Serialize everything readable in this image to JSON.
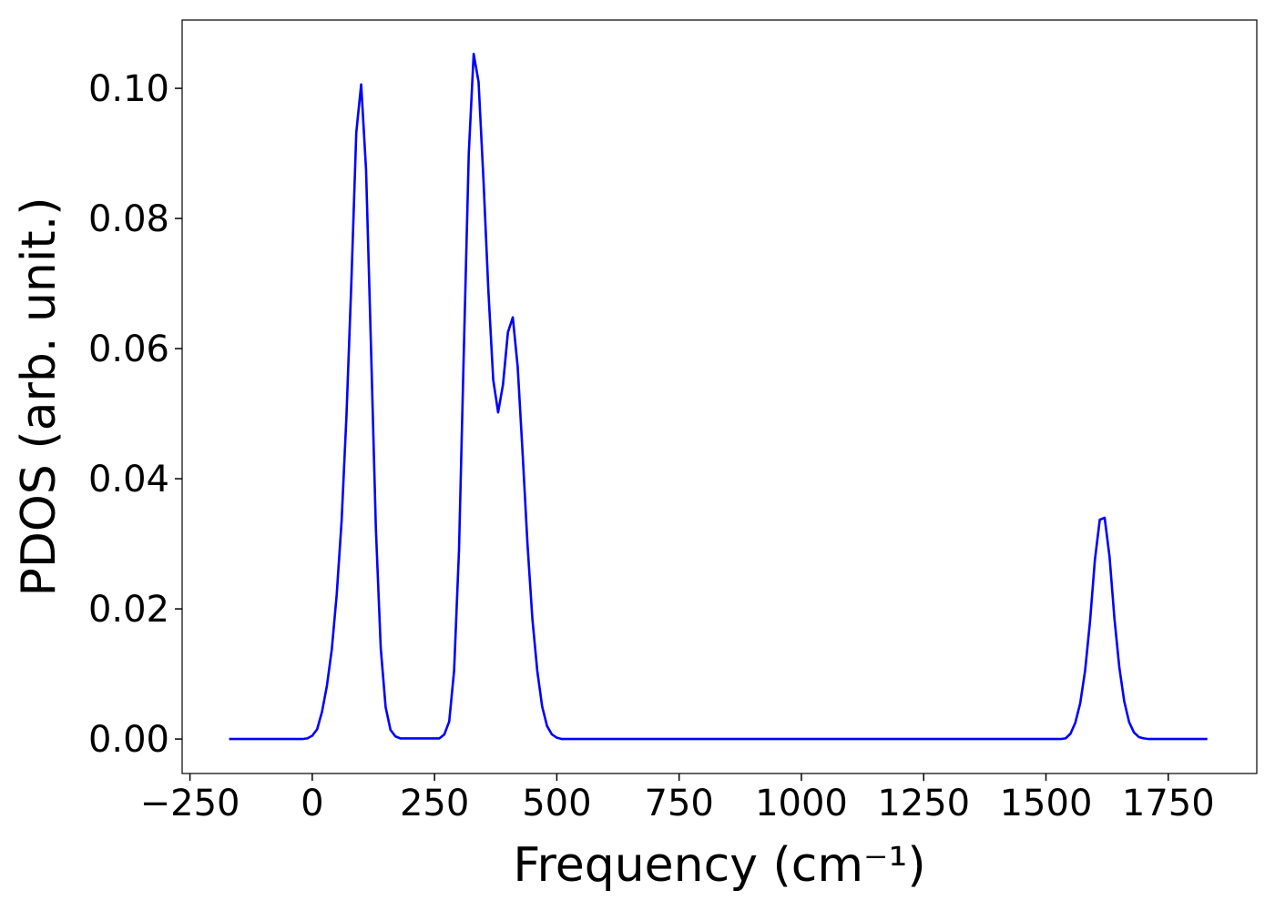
{
  "chart_data": {
    "type": "line",
    "xlabel": "Frequency (cm⁻¹)",
    "ylabel": "PDOS (arb. unit.)",
    "xlim": [
      -266,
      1931
    ],
    "ylim": [
      -0.0053,
      0.1105
    ],
    "xticks": [
      {
        "value": -250,
        "label": "−250"
      },
      0,
      250,
      500,
      750,
      1000,
      1250,
      1500,
      1750
    ],
    "yticks": [
      {
        "value": 0,
        "label": "0.00"
      },
      {
        "value": 0.02,
        "label": "0.02"
      },
      {
        "value": 0.04,
        "label": "0.04"
      },
      {
        "value": 0.06,
        "label": "0.06"
      },
      {
        "value": 0.08,
        "label": "0.08"
      },
      {
        "value": 0.1,
        "label": "0.10"
      }
    ],
    "grid": false,
    "series": [
      {
        "color": "#0000ff",
        "x": [
          -170,
          -20,
          -10,
          0,
          10,
          20,
          30,
          40,
          50,
          60,
          70,
          80,
          90,
          100,
          110,
          120,
          130,
          140,
          150,
          160,
          170,
          180,
          260,
          270,
          280,
          290,
          300,
          310,
          320,
          330,
          340,
          350,
          360,
          370,
          380,
          390,
          400,
          410,
          420,
          430,
          440,
          450,
          460,
          470,
          480,
          490,
          500,
          510,
          1530,
          1540,
          1550,
          1560,
          1570,
          1580,
          1590,
          1600,
          1610,
          1620,
          1630,
          1640,
          1650,
          1660,
          1670,
          1680,
          1690,
          1700,
          1710,
          1830
        ],
        "values": [
          0,
          0,
          0.0001,
          0.0005,
          0.0015,
          0.0042,
          0.0082,
          0.0138,
          0.0222,
          0.0335,
          0.0498,
          0.0703,
          0.0932,
          0.1006,
          0.0875,
          0.0605,
          0.0325,
          0.014,
          0.0049,
          0.0014,
          0.0004,
          0.0001,
          0.0001,
          0.0007,
          0.0027,
          0.0105,
          0.029,
          0.06,
          0.09,
          0.1053,
          0.101,
          0.086,
          0.069,
          0.0552,
          0.0502,
          0.0545,
          0.0625,
          0.0648,
          0.0572,
          0.044,
          0.03,
          0.0185,
          0.0105,
          0.005,
          0.002,
          0.0007,
          0.0002,
          0,
          0,
          0.0001,
          0.0008,
          0.0025,
          0.0055,
          0.0105,
          0.018,
          0.0275,
          0.0337,
          0.034,
          0.028,
          0.0185,
          0.011,
          0.0058,
          0.0026,
          0.001,
          0.0003,
          0.0001,
          0,
          0
        ]
      }
    ]
  }
}
